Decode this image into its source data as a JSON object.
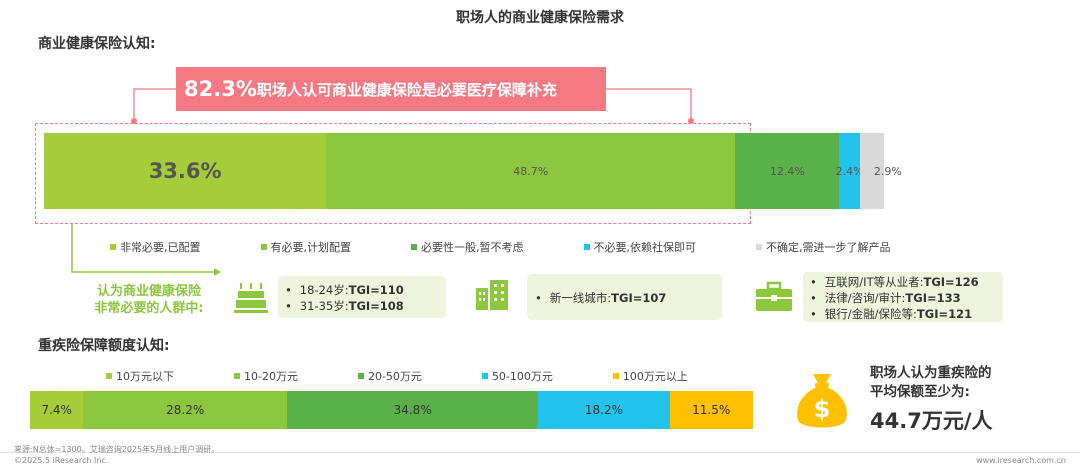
{
  "page_title": "职场人的商业健康保险需求",
  "section1_title": "商业健康保险认知:",
  "highlight": {
    "number": "82.3%",
    "text": "职场人认可商业健康保险是必要医疗保障补充"
  },
  "crowd_label_line1": "认为商业健康保险",
  "crowd_label_line2": "非常必要的人群中:",
  "age_box": {
    "items": [
      {
        "text": "18-24岁:",
        "tgi": "TGI=110"
      },
      {
        "text": "31-35岁:",
        "tgi": "TGI=108"
      }
    ]
  },
  "city_box": {
    "items": [
      {
        "text": "新一线城市:",
        "tgi": "TGI=107"
      }
    ]
  },
  "industry_box": {
    "items": [
      {
        "text": "互联网/IT等从业者:",
        "tgi": "TGI=126"
      },
      {
        "text": "法律/咨询/审计:",
        "tgi": "TGI=133"
      },
      {
        "text": "银行/金融/保险等:",
        "tgi": "TGI=121"
      }
    ]
  },
  "section2_title": "重疾险保障额度认知:",
  "avg_line1": "职场人认为重疾险的",
  "avg_line2": "平均保额至少为:",
  "avg_value": "44.7万元/人",
  "footer": {
    "source": "来源:N总体=1300。艾瑞咨询2025年5月线上用户调研。",
    "copyright": "©2025.5 iResearch Inc.",
    "site": "www.iresearch.com.cn"
  },
  "icons": [
    "cake-icon",
    "building-icon",
    "briefcase-icon",
    "money-bag-icon"
  ],
  "colors": {
    "accent_pink": "#f47983",
    "light_green": "#a5cd39",
    "mid_green": "#8dc63f",
    "dark_green": "#5ab049",
    "cyan": "#22c4ee",
    "gray": "#d9d9d9",
    "yellow": "#ffc000",
    "box_bg": "#eff5dd"
  },
  "chart_data": [
    {
      "type": "bar",
      "orientation": "horizontal-stacked-100",
      "categories": [
        "商业健康保险认知"
      ],
      "series": [
        {
          "name": "非常必要,已配置",
          "values": [
            33.6
          ],
          "color": "#a5cd39",
          "label": "33.6%"
        },
        {
          "name": "有必要,计划配置",
          "values": [
            48.7
          ],
          "color": "#8dc63f",
          "label": "48.7%"
        },
        {
          "name": "必要性一般,暂不考虑",
          "values": [
            12.4
          ],
          "color": "#5ab049",
          "label": "12.4%"
        },
        {
          "name": "不必要,依赖社保即可",
          "values": [
            2.4
          ],
          "color": "#22c4ee",
          "label": "2.4%"
        },
        {
          "name": "不确定,需进一步了解产品",
          "values": [
            2.9
          ],
          "color": "#d9d9d9",
          "label": "2.9%"
        }
      ]
    },
    {
      "type": "bar",
      "orientation": "horizontal-stacked-100",
      "categories": [
        "重疾险保障额度认知"
      ],
      "series": [
        {
          "name": "10万元以下",
          "values": [
            7.4
          ],
          "color": "#a5cd39",
          "label": "7.4%"
        },
        {
          "name": "10-20万元",
          "values": [
            28.2
          ],
          "color": "#8dc63f",
          "label": "28.2%"
        },
        {
          "name": "20-50万元",
          "values": [
            34.8
          ],
          "color": "#5ab049",
          "label": "34.8%"
        },
        {
          "name": "50-100万元",
          "values": [
            18.2
          ],
          "color": "#22c4ee",
          "label": "18.2%"
        },
        {
          "name": "100万元以上",
          "values": [
            11.5
          ],
          "color": "#ffc000",
          "label": "11.5%"
        }
      ]
    }
  ]
}
